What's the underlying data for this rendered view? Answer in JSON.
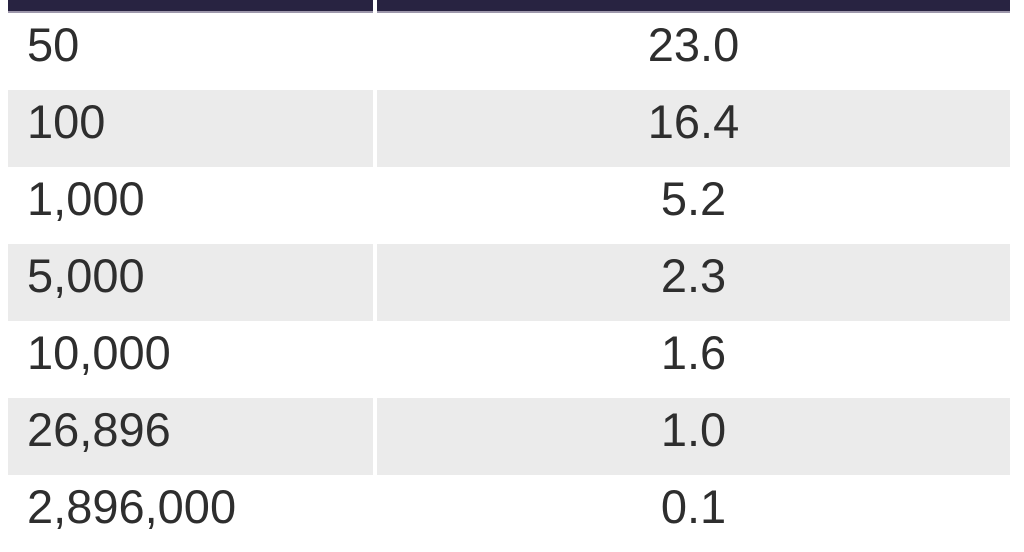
{
  "colors": {
    "header_bar": "#282341",
    "header_border": "#9d97ab",
    "row_stripe": "#ebebeb",
    "row_plain": "#ffffff",
    "text": "#2e2e2e"
  },
  "chart_data": {
    "type": "table",
    "notes": "two-column data table; header row labels cropped out of view at top; last row clipped by bottom edge",
    "columns": [
      "",
      ""
    ],
    "rows": [
      [
        "50",
        "23.0"
      ],
      [
        "100",
        "16.4"
      ],
      [
        "1,000",
        "5.2"
      ],
      [
        "5,000",
        "2.3"
      ],
      [
        "10,000",
        "1.6"
      ],
      [
        "26,896",
        "1.0"
      ],
      [
        "2,896,000",
        "0.1"
      ]
    ]
  }
}
